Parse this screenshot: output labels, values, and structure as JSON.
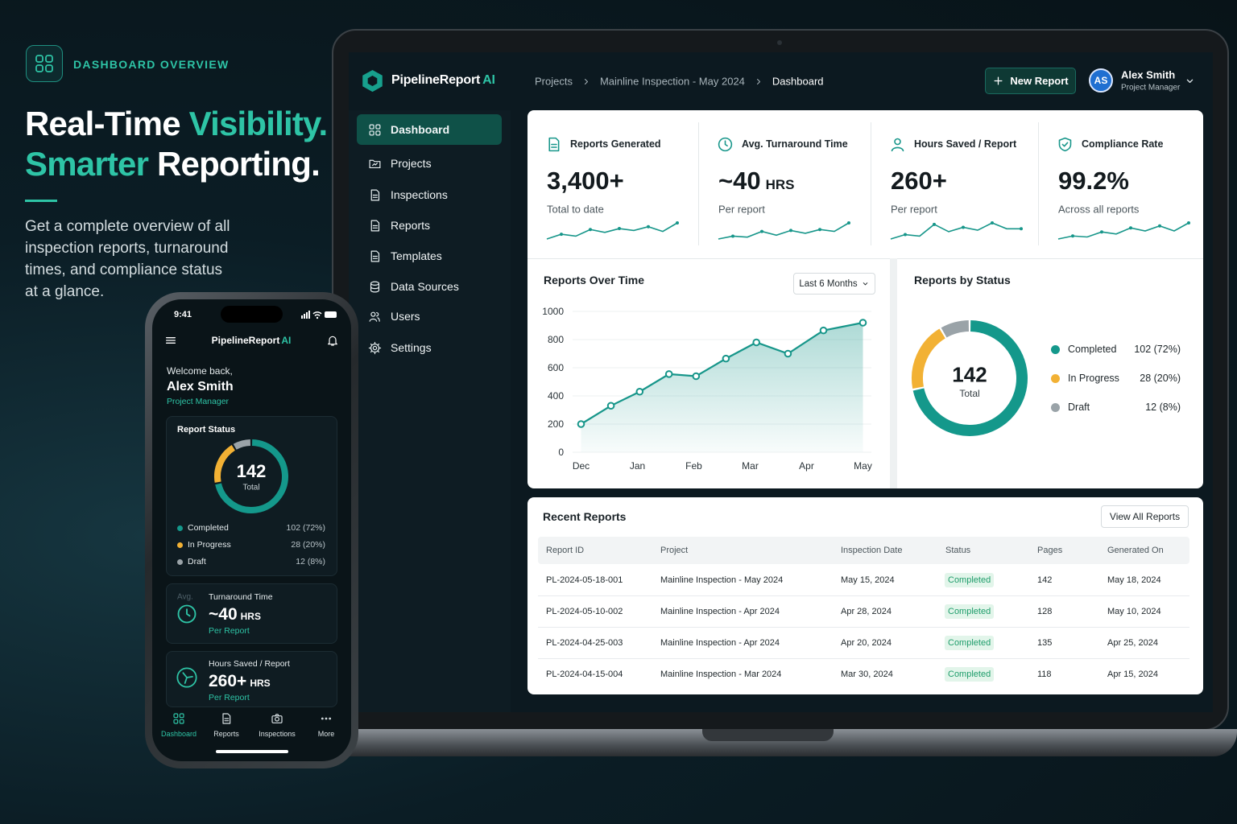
{
  "hero": {
    "badge": "DASHBOARD OVERVIEW",
    "title": [
      [
        "Real-Time",
        "Visibility."
      ],
      [
        "Smarter",
        "Reporting."
      ]
    ],
    "description": "Get a complete overview of all inspection reports, turnaround times, and compliance status at a glance."
  },
  "app": {
    "brand": "PipelineReport",
    "brand_ai": "AI",
    "breadcrumb": [
      "Projects",
      "Mainline Inspection - May 2024",
      "Dashboard"
    ],
    "new_report": "New Report",
    "user": {
      "initials": "AS",
      "name": "Alex Smith",
      "role": "Project Manager"
    },
    "nav": [
      "Dashboard",
      "Projects",
      "Inspections",
      "Reports",
      "Templates",
      "Data Sources",
      "Users",
      "Settings"
    ],
    "trend_color": "#17968a",
    "kpis": [
      {
        "label": "Reports Generated",
        "value": "3,400+",
        "sub": "Total to date",
        "trend": [
          3,
          8,
          6,
          13,
          10,
          14,
          12,
          16,
          11,
          20
        ]
      },
      {
        "label": "Avg. Turnaround Time",
        "value": "~40",
        "unit": "HRS",
        "sub": "Per report",
        "trend": [
          3,
          6,
          5,
          11,
          7,
          12,
          9,
          13,
          11,
          20
        ]
      },
      {
        "label": "Hours Saved / Report",
        "value": "260+",
        "sub": "Per report",
        "trend": [
          4,
          7,
          6,
          14,
          9,
          12,
          10,
          15,
          11,
          11
        ]
      },
      {
        "label": "Compliance Rate",
        "value": "99.2%",
        "sub": "Across all reports",
        "trend": [
          3,
          6,
          5,
          10,
          8,
          14,
          11,
          16,
          11,
          19
        ]
      }
    ]
  },
  "reports_over_time": {
    "type": "line",
    "title": "Reports Over Time",
    "range_select": "Last 6 Months",
    "x": [
      0,
      0.53,
      1.04,
      1.56,
      2.04,
      2.57,
      3.11,
      3.67,
      4.3,
      5.0
    ],
    "values": [
      200,
      330,
      430,
      555,
      540,
      665,
      780,
      700,
      865,
      920
    ],
    "color": "#17968a",
    "xlim": [
      -0.15,
      5.15
    ],
    "xticks": [
      {
        "value": 0,
        "label": "Dec"
      },
      {
        "value": 1,
        "label": "Jan"
      },
      {
        "value": 2,
        "label": "Feb"
      },
      {
        "value": 3,
        "label": "Mar"
      },
      {
        "value": 4,
        "label": "Apr"
      },
      {
        "value": 5,
        "label": "May"
      }
    ],
    "ylim": [
      0,
      1000
    ],
    "yticks": [
      0,
      200,
      400,
      600,
      800,
      1000
    ],
    "grid": true
  },
  "reports_by_status": {
    "type": "donut",
    "title": "Reports by Status",
    "total": 142,
    "total_label": "Total",
    "categories": [
      "Completed",
      "In Progress",
      "Draft"
    ],
    "values": [
      102,
      28,
      12
    ],
    "value_labels": [
      "102 (72%)",
      "28 (20%)",
      "12 (8%)"
    ],
    "colors": [
      "#14988b",
      "#f2b134",
      "#9aa3a8"
    ]
  },
  "recent_reports": {
    "title": "Recent Reports",
    "view_all": "View All Reports",
    "columns": [
      "Report ID",
      "Project",
      "Inspection Date",
      "Status",
      "Pages",
      "Generated On"
    ],
    "rows": [
      [
        "PL-2024-05-18-001",
        "Mainline Inspection - May 2024",
        "May 15, 2024",
        "Completed",
        142,
        "May 18, 2024"
      ],
      [
        "PL-2024-05-10-002",
        "Mainline Inspection - Apr 2024",
        "Apr 28, 2024",
        "Completed",
        128,
        "May 10, 2024"
      ],
      [
        "PL-2024-04-25-003",
        "Mainline Inspection - Apr 2024",
        "Apr 20, 2024",
        "Completed",
        135,
        "Apr 25, 2024"
      ],
      [
        "PL-2024-04-15-004",
        "Mainline Inspection - Mar 2024",
        "Mar 30, 2024",
        "Completed",
        118,
        "Apr 15, 2024"
      ]
    ]
  },
  "phone": {
    "time": "9:41",
    "greeting": "Welcome back,",
    "status_title": "Report Status",
    "turnaround": {
      "prefix": "Avg.",
      "label": "Turnaround Time",
      "value": "~40",
      "unit": "HRS",
      "sub": "Per Report"
    },
    "hours_saved": {
      "label": "Hours Saved / Report",
      "value": "260+",
      "unit": "HRS",
      "sub": "Per Report"
    },
    "tabs": [
      "Dashboard",
      "Reports",
      "Inspections",
      "More"
    ]
  }
}
